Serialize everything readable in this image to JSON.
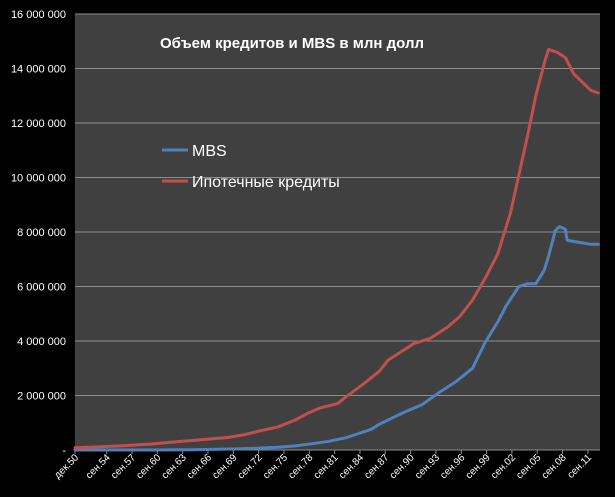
{
  "chart_data": {
    "type": "line",
    "title": "Объем кредитов и MBS в млн долл",
    "xlabel": "",
    "ylabel": "",
    "ylim": [
      0,
      16000000
    ],
    "y_ticks": [
      0,
      2000000,
      4000000,
      6000000,
      8000000,
      10000000,
      12000000,
      14000000,
      16000000
    ],
    "y_tick_labels": [
      "-",
      "2 000 000",
      "4 000 000",
      "6 000 000",
      "8 000 000",
      "10 000 000",
      "12 000 000",
      "14 000 000",
      "16 000 000"
    ],
    "x_tick_labels": [
      "дек.50",
      "сен.54",
      "сен.57",
      "сен.60",
      "сен.63",
      "сен.66",
      "сен.69",
      "сен.72",
      "сен.75",
      "сен.78",
      "сен.81",
      "сен.84",
      "сен.87",
      "сен.90",
      "сен.93",
      "сен.96",
      "сен.99",
      "сен.02",
      "сен.05",
      "сен.08",
      "сен.11"
    ],
    "x_tick_years": [
      1950.92,
      1954.67,
      1957.67,
      1960.67,
      1963.67,
      1966.67,
      1969.67,
      1972.67,
      1975.67,
      1978.67,
      1981.67,
      1984.67,
      1987.67,
      1990.67,
      1993.67,
      1996.67,
      1999.67,
      2002.67,
      2005.67,
      2008.67,
      2011.67
    ],
    "xlim": [
      1950.92,
      2013.1
    ],
    "grid": true,
    "legend_position": "center-left",
    "series": [
      {
        "name": "MBS",
        "color": "#4f81bd",
        "x": [
          1950.92,
          1960,
          1965,
          1968,
          1970,
          1972,
          1975,
          1977,
          1979,
          1981,
          1983,
          1984,
          1986,
          1987,
          1988,
          1990,
          1992,
          1994,
          1996,
          1998,
          1999.5,
          2001,
          2002,
          2003.5,
          2004.5,
          2005.5,
          2006.5,
          2007,
          2007.8,
          2008.3,
          2009,
          2009.2,
          2010,
          2011,
          2012,
          2012.9
        ],
        "y": [
          0,
          0,
          10000,
          25000,
          40000,
          60000,
          100000,
          150000,
          230000,
          320000,
          450000,
          550000,
          760000,
          950000,
          1100000,
          1400000,
          1660000,
          2100000,
          2500000,
          3000000,
          3950000,
          4700000,
          5300000,
          6000000,
          6100000,
          6100000,
          6600000,
          7100000,
          8050000,
          8200000,
          8100000,
          7700000,
          7650000,
          7600000,
          7550000,
          7550000
        ]
      },
      {
        "name": "Ипотечные кредиты",
        "color": "#c0504d",
        "x": [
          1950.92,
          1954,
          1957,
          1960,
          1963,
          1966,
          1969,
          1971,
          1972.5,
          1975,
          1977,
          1978.5,
          1980,
          1982,
          1983,
          1985,
          1987,
          1988,
          1990,
          1991,
          1993,
          1995,
          1996.5,
          1998,
          1999.5,
          2001,
          2002.5,
          2003.5,
          2004.5,
          2005.5,
          2006.5,
          2007,
          2008,
          2009,
          2010,
          2011,
          2012,
          2012.9
        ],
        "y": [
          80000,
          120000,
          160000,
          220000,
          300000,
          380000,
          460000,
          560000,
          680000,
          850000,
          1100000,
          1350000,
          1550000,
          1700000,
          1950000,
          2400000,
          2900000,
          3300000,
          3700000,
          3900000,
          4100000,
          4500000,
          4900000,
          5500000,
          6300000,
          7200000,
          8700000,
          10100000,
          11500000,
          13000000,
          14200000,
          14700000,
          14600000,
          14400000,
          13800000,
          13500000,
          13200000,
          13100000
        ]
      }
    ]
  }
}
